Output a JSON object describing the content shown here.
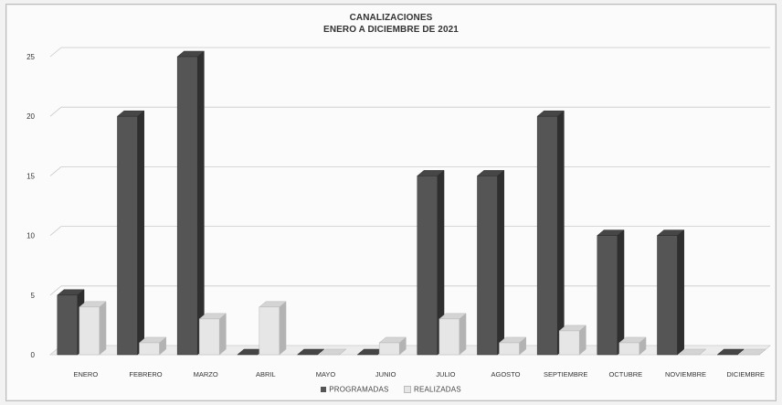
{
  "chart_data": {
    "type": "bar",
    "title": "CANALIZACIONES",
    "subtitle": "ENERO A DICIEMBRE DE 2021",
    "categories": [
      "ENERO",
      "FEBRERO",
      "MARZO",
      "ABRIL",
      "MAYO",
      "JUNIO",
      "JULIO",
      "AGOSTO",
      "SEPTIEMBRE",
      "OCTUBRE",
      "NOVIEMBRE",
      "DICIEMBRE"
    ],
    "series": [
      {
        "name": "PROGRAMADAS",
        "values": [
          5,
          20,
          25,
          0,
          0,
          0,
          15,
          15,
          20,
          10,
          10,
          0
        ],
        "color": "#555555"
      },
      {
        "name": "REALIZADAS",
        "values": [
          4,
          1,
          3,
          4,
          0,
          1,
          3,
          1,
          2,
          1,
          0,
          0
        ],
        "color": "#e6e6e6"
      }
    ],
    "ylim": [
      0,
      25
    ],
    "yticks": [
      0,
      5,
      10,
      15,
      20,
      25
    ],
    "grid": true,
    "legend_position": "bottom",
    "style": "3d-column"
  }
}
